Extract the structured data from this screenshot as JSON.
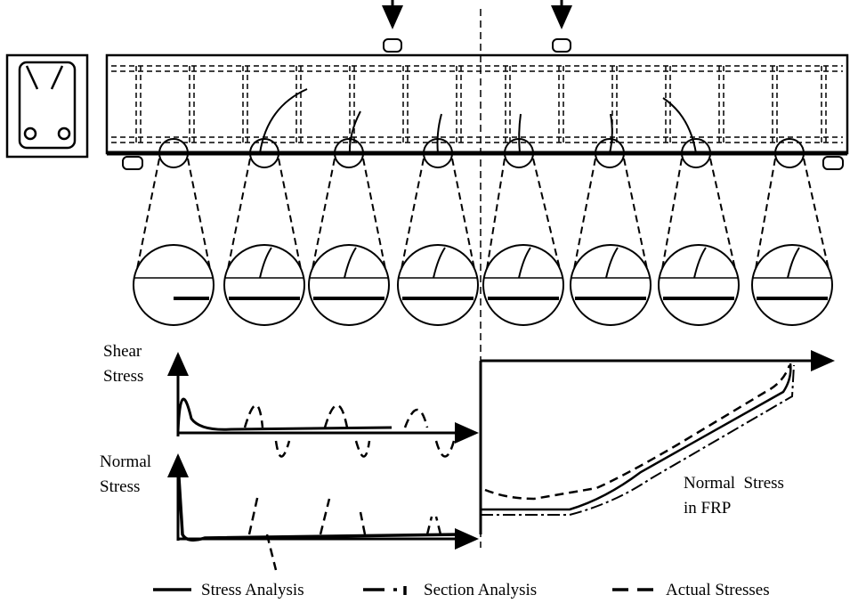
{
  "labels": {
    "shear_axis": [
      "Shear",
      "Stress"
    ],
    "normal_axis": [
      "Normal",
      "Stress"
    ],
    "frp_axis": [
      "Normal  Stress",
      "in FRP"
    ]
  },
  "legend": [
    "Stress Analysis",
    "Section Analysis",
    "Actual Stresses"
  ]
}
